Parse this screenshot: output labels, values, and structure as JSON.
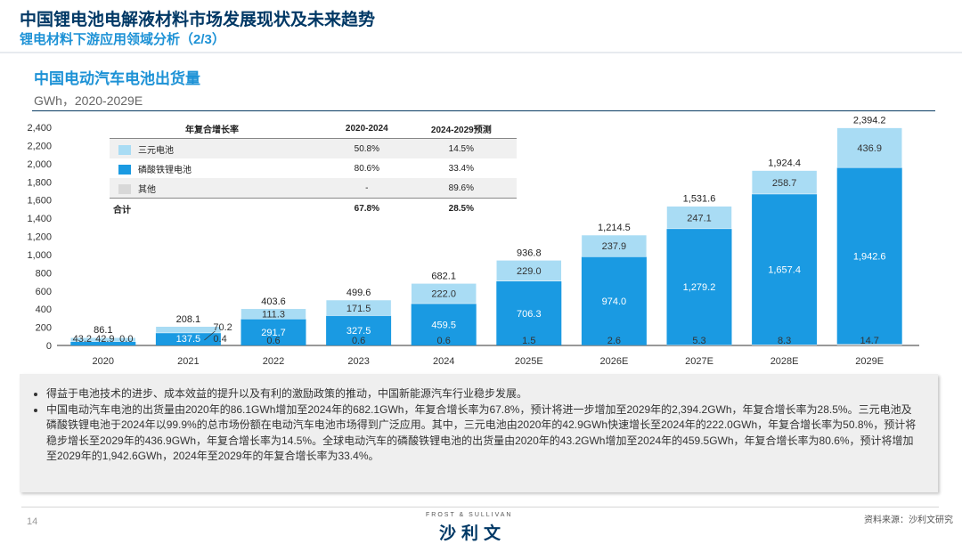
{
  "header": {
    "title": "中国锂电池电解液材料市场发展现状及未来趋势",
    "subtitle": "锂电材料下游应用领域分析（2/3）"
  },
  "chart_title": "中国电动汽车电池出货量",
  "chart_unit": "GWh，2020-2029E",
  "cagr_table": {
    "headers": [
      "年复合增长率",
      "2020-2024",
      "2024-2029预测"
    ],
    "rows": [
      {
        "name": "三元电池",
        "color": "#a9dcf4",
        "c1": "50.8%",
        "c2": "14.5%"
      },
      {
        "name": "磷酸铁锂电池",
        "color": "#1a9ae2",
        "c1": "80.6%",
        "c2": "33.4%"
      },
      {
        "name": "其他",
        "color": "#d8d8d8",
        "c1": "-",
        "c2": "89.6%"
      }
    ],
    "total": {
      "name": "合计",
      "c1": "67.8%",
      "c2": "28.5%"
    }
  },
  "chart_data": {
    "type": "bar",
    "stacked": true,
    "categories": [
      "2020",
      "2021",
      "2022",
      "2023",
      "2024",
      "2025E",
      "2026E",
      "2027E",
      "2028E",
      "2029E"
    ],
    "series": [
      {
        "name": "其他",
        "color": "#d8d8d8",
        "values": [
          0.0,
          0.4,
          0.6,
          0.6,
          0.6,
          1.5,
          2.6,
          5.3,
          8.3,
          14.7
        ]
      },
      {
        "name": "磷酸铁锂电池",
        "color": "#1a9ae2",
        "values": [
          43.2,
          137.5,
          291.7,
          327.5,
          459.5,
          706.3,
          974.0,
          1279.2,
          1657.4,
          1942.6
        ]
      },
      {
        "name": "三元电池",
        "color": "#a9dcf4",
        "values": [
          42.9,
          70.2,
          111.3,
          171.5,
          222.0,
          229.0,
          237.9,
          247.1,
          258.7,
          436.9
        ]
      }
    ],
    "labels": {
      "other": [
        "0.0",
        "0.4",
        "0.6",
        "0.6",
        "0.6",
        "1.5",
        "2.6",
        "5.3",
        "8.3",
        "14.7"
      ],
      "lfp": [
        "43.2",
        "137.5",
        "291.7",
        "327.5",
        "459.5",
        "706.3",
        "974.0",
        "1,279.2",
        "1,657.4",
        "1,942.6"
      ],
      "ncm": [
        "42.9",
        "70.2",
        "111.3",
        "171.5",
        "222.0",
        "229.0",
        "237.9",
        "247.1",
        "258.7",
        "436.9"
      ]
    },
    "totals": [
      "86.1",
      "208.1",
      "403.6",
      "499.6",
      "682.1",
      "936.8",
      "1,214.5",
      "1,531.6",
      "1,924.4",
      "2,394.2"
    ],
    "ylim": [
      0,
      2400
    ],
    "yticks": [
      "0",
      "200",
      "400",
      "600",
      "800",
      "1,000",
      "1,200",
      "1,400",
      "1,600",
      "1,800",
      "2,000",
      "2,200",
      "2,400"
    ],
    "xlabel": "",
    "ylabel": "GWh"
  },
  "notes": [
    "得益于电池技术的进步、成本效益的提升以及有利的激励政策的推动，中国新能源汽车行业稳步发展。",
    "中国电动汽车电池的出货量由2020年的86.1GWh增加至2024年的682.1GWh，年复合增长率为67.8%，预计将进一步增加至2029年的2,394.2GWh，年复合增长率为28.5%。三元电池及磷酸铁锂电池于2024年以99.9%的总市场份额在电动汽车电池市场得到广泛应用。其中，三元电池由2020年的42.9GWh快速增长至2024年的222.0GWh，年复合增长率为50.8%，预计将稳步增长至2029年的436.9GWh，年复合增长率为14.5%。全球电动汽车的磷酸铁锂电池的出货量由2020年的43.2GWh增加至2024年的459.5GWh，年复合增长率为80.6%，预计将增加至2029年的1,942.6GWh，2024年至2029年的年复合增长率为33.4%。"
  ],
  "footer": {
    "page_number": "14",
    "brand_en": "FROST & SULLIVAN",
    "brand_cn": "沙利文",
    "source": "资料来源：沙利文研究"
  }
}
